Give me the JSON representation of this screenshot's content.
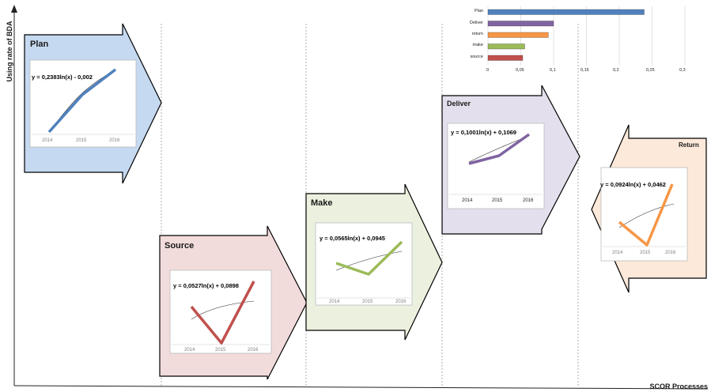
{
  "axes": {
    "y_label": "Using rate of BDA",
    "x_label": "SCOR Processes"
  },
  "colors": {
    "plan": "#4f81bd",
    "deliver": "#8064a2",
    "return": "#f79646",
    "make": "#9bbb59",
    "source": "#c0504d",
    "plan_fill": "#c5d9f1",
    "source_fill": "#f2dcdb",
    "make_fill": "#ebf1de",
    "deliver_fill": "#e4dfec",
    "return_fill": "#fde9d9"
  },
  "panels": [
    {
      "id": "plan",
      "title": "Plan",
      "equation": "y = 0,2383ln(x) - 0,002",
      "years": [
        "2014",
        "2015",
        "2016"
      ],
      "values": [
        0.0,
        0.16,
        0.24
      ]
    },
    {
      "id": "source",
      "title": "Source",
      "equation": "y = 0,0527ln(x) + 0,0898",
      "years": [
        "2014",
        "2015",
        "2016"
      ],
      "values": [
        0.14,
        0.06,
        0.17
      ]
    },
    {
      "id": "make",
      "title": "Make",
      "equation": "y = 0,0565ln(x) + 0,0945",
      "years": [
        "2014",
        "2015",
        "2016"
      ],
      "values": [
        0.1,
        0.08,
        0.14
      ]
    },
    {
      "id": "deliver",
      "title": "Deliver",
      "equation": "y = 0,1001ln(x) + 0,1069",
      "years": [
        "2014",
        "2015",
        "2016"
      ],
      "values": [
        0.1,
        0.12,
        0.18
      ]
    },
    {
      "id": "return",
      "title": "Return",
      "equation": "y = 0,0924ln(x) + 0,0462",
      "years": [
        "2014",
        "2015",
        "2016"
      ],
      "values": [
        0.08,
        0.02,
        0.15
      ]
    }
  ],
  "chart_data": {
    "type": "bar",
    "orientation": "horizontal",
    "categories": [
      "Plan",
      "Deliver",
      "return",
      "make",
      "source"
    ],
    "values": [
      0.238,
      0.1,
      0.092,
      0.056,
      0.053
    ],
    "xlim": [
      0,
      0.3
    ],
    "xticks": [
      "0",
      "0,05",
      "0,1",
      "0,15",
      "0,2",
      "0,25",
      "0,3"
    ],
    "grid": true
  }
}
